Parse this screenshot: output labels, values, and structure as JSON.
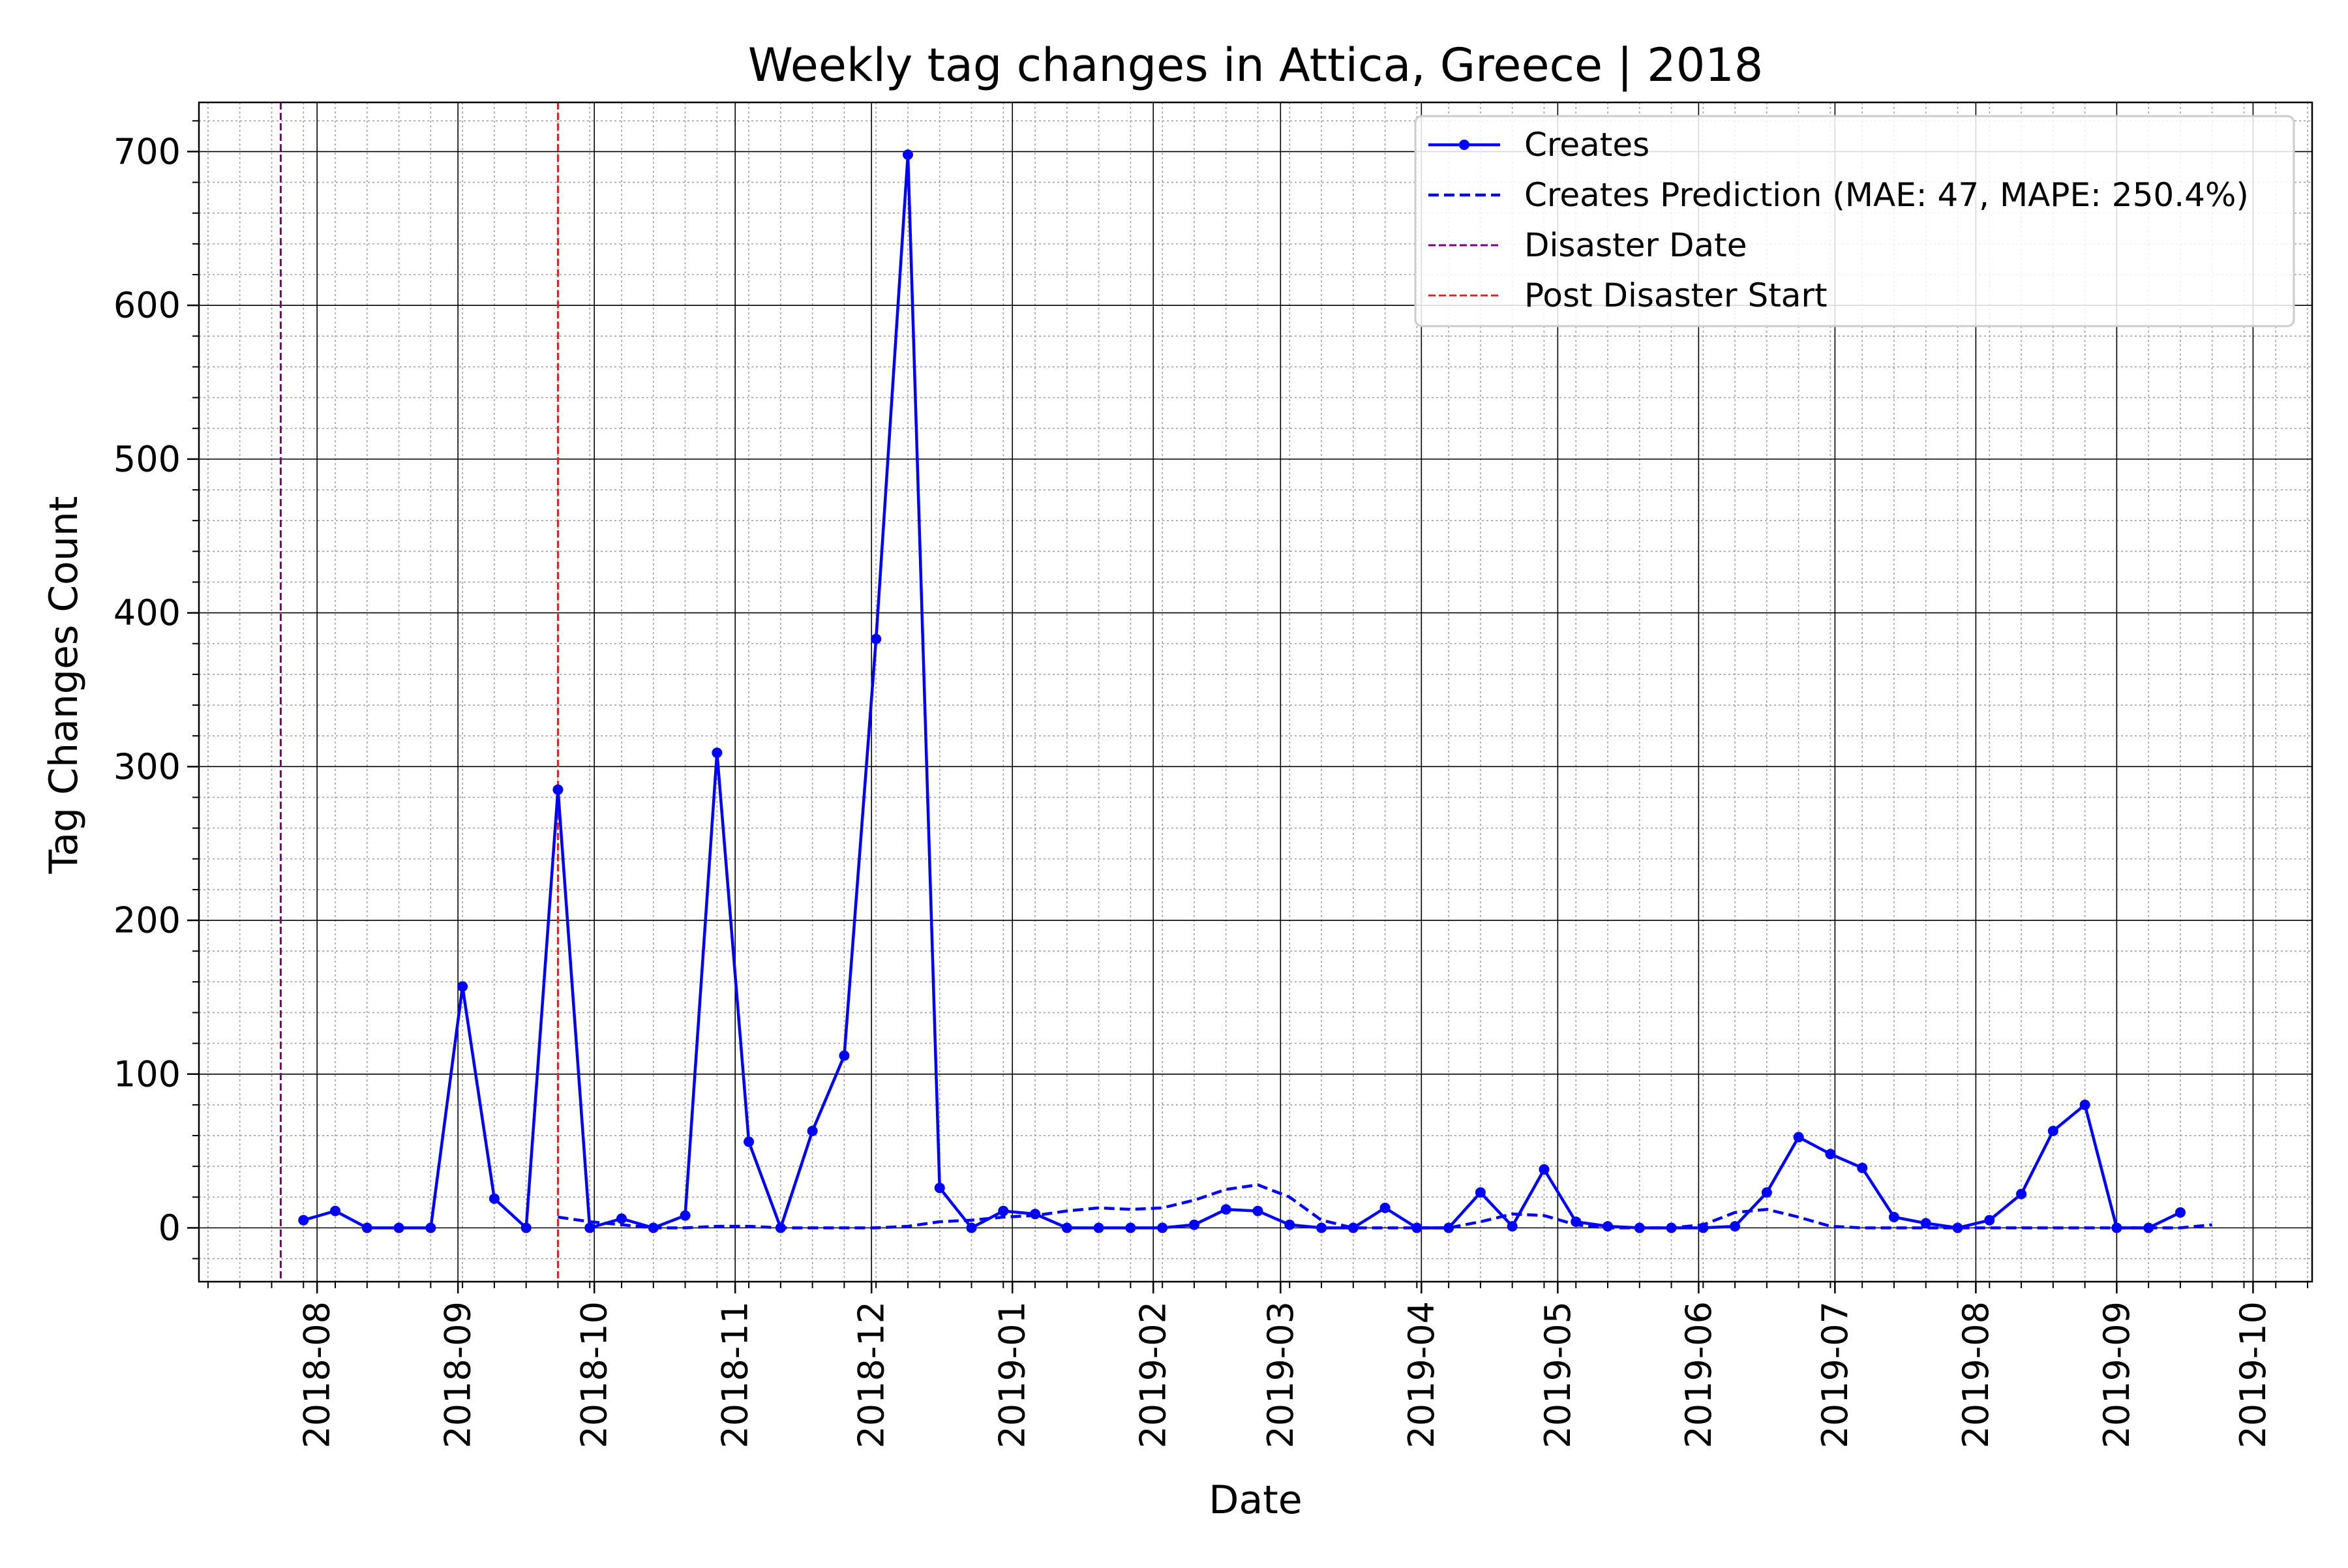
{
  "chart_data": {
    "type": "line",
    "title": "Weekly tag changes in Attica, Greece | 2018",
    "xlabel": "Date",
    "ylabel": "Tag Changes Count",
    "x_range": [
      "2018-07-06",
      "2019-10-14"
    ],
    "ylim": [
      -35,
      732
    ],
    "grid": true,
    "minor_grid": true,
    "legend_position": "top-right",
    "x_tick_labels": [
      "2018-08",
      "2018-09",
      "2018-10",
      "2018-11",
      "2018-12",
      "2019-01",
      "2019-02",
      "2019-03",
      "2019-04",
      "2019-05",
      "2019-06",
      "2019-07",
      "2019-08",
      "2019-09",
      "2019-10"
    ],
    "y_ticks": [
      0,
      100,
      200,
      300,
      400,
      500,
      600,
      700
    ],
    "series": [
      {
        "name": "Creates",
        "style": "solid-marker",
        "color": "#0000ff",
        "points": [
          [
            "2018-07-29",
            5
          ],
          [
            "2018-08-05",
            11
          ],
          [
            "2018-08-12",
            0
          ],
          [
            "2018-08-19",
            0
          ],
          [
            "2018-08-26",
            0
          ],
          [
            "2018-09-02",
            157
          ],
          [
            "2018-09-09",
            19
          ],
          [
            "2018-09-16",
            0
          ],
          [
            "2018-09-23",
            285
          ],
          [
            "2018-09-30",
            0
          ],
          [
            "2018-10-07",
            6
          ],
          [
            "2018-10-14",
            0
          ],
          [
            "2018-10-21",
            8
          ],
          [
            "2018-10-28",
            309
          ],
          [
            "2018-11-04",
            56
          ],
          [
            "2018-11-11",
            0
          ],
          [
            "2018-11-18",
            63
          ],
          [
            "2018-11-25",
            112
          ],
          [
            "2018-12-02",
            383
          ],
          [
            "2018-12-09",
            698
          ],
          [
            "2018-12-16",
            26
          ],
          [
            "2018-12-23",
            0
          ],
          [
            "2018-12-30",
            11
          ],
          [
            "2019-01-06",
            9
          ],
          [
            "2019-01-13",
            0
          ],
          [
            "2019-01-20",
            0
          ],
          [
            "2019-01-27",
            0
          ],
          [
            "2019-02-03",
            0
          ],
          [
            "2019-02-10",
            2
          ],
          [
            "2019-02-17",
            12
          ],
          [
            "2019-02-24",
            11
          ],
          [
            "2019-03-03",
            2
          ],
          [
            "2019-03-10",
            0
          ],
          [
            "2019-03-17",
            0
          ],
          [
            "2019-03-24",
            13
          ],
          [
            "2019-03-31",
            0
          ],
          [
            "2019-04-07",
            0
          ],
          [
            "2019-04-14",
            23
          ],
          [
            "2019-04-21",
            1
          ],
          [
            "2019-04-28",
            38
          ],
          [
            "2019-05-05",
            4
          ],
          [
            "2019-05-12",
            1
          ],
          [
            "2019-05-19",
            0
          ],
          [
            "2019-05-26",
            0
          ],
          [
            "2019-06-02",
            0
          ],
          [
            "2019-06-09",
            1
          ],
          [
            "2019-06-16",
            23
          ],
          [
            "2019-06-23",
            59
          ],
          [
            "2019-06-30",
            48
          ],
          [
            "2019-07-07",
            39
          ],
          [
            "2019-07-14",
            7
          ],
          [
            "2019-07-21",
            3
          ],
          [
            "2019-07-28",
            0
          ],
          [
            "2019-08-04",
            5
          ],
          [
            "2019-08-11",
            22
          ],
          [
            "2019-08-18",
            63
          ],
          [
            "2019-08-25",
            80
          ],
          [
            "2019-09-01",
            0
          ],
          [
            "2019-09-08",
            0
          ],
          [
            "2019-09-15",
            10
          ]
        ]
      },
      {
        "name": "Creates Prediction (MAE: 47, MAPE: 250.4%)",
        "style": "dashed",
        "color": "#0000ff",
        "points": [
          [
            "2018-09-23",
            7
          ],
          [
            "2018-09-30",
            4
          ],
          [
            "2018-10-07",
            2
          ],
          [
            "2018-10-14",
            0
          ],
          [
            "2018-10-21",
            0
          ],
          [
            "2018-10-28",
            1
          ],
          [
            "2018-11-04",
            1
          ],
          [
            "2018-11-11",
            0
          ],
          [
            "2018-11-18",
            0
          ],
          [
            "2018-11-25",
            0
          ],
          [
            "2018-12-02",
            0
          ],
          [
            "2018-12-09",
            1
          ],
          [
            "2018-12-16",
            4
          ],
          [
            "2018-12-23",
            5
          ],
          [
            "2018-12-30",
            7
          ],
          [
            "2019-01-06",
            8
          ],
          [
            "2019-01-13",
            11
          ],
          [
            "2019-01-20",
            13
          ],
          [
            "2019-01-27",
            12
          ],
          [
            "2019-02-03",
            13
          ],
          [
            "2019-02-10",
            18
          ],
          [
            "2019-02-17",
            25
          ],
          [
            "2019-02-24",
            28
          ],
          [
            "2019-03-03",
            20
          ],
          [
            "2019-03-10",
            5
          ],
          [
            "2019-03-17",
            0
          ],
          [
            "2019-03-24",
            0
          ],
          [
            "2019-03-31",
            0
          ],
          [
            "2019-04-07",
            0
          ],
          [
            "2019-04-14",
            4
          ],
          [
            "2019-04-21",
            9
          ],
          [
            "2019-04-28",
            8
          ],
          [
            "2019-05-05",
            2
          ],
          [
            "2019-05-12",
            0
          ],
          [
            "2019-05-19",
            0
          ],
          [
            "2019-05-26",
            0
          ],
          [
            "2019-06-02",
            2
          ],
          [
            "2019-06-09",
            10
          ],
          [
            "2019-06-16",
            12
          ],
          [
            "2019-06-23",
            7
          ],
          [
            "2019-06-30",
            1
          ],
          [
            "2019-07-07",
            0
          ],
          [
            "2019-07-14",
            0
          ],
          [
            "2019-07-21",
            0
          ],
          [
            "2019-07-28",
            0
          ],
          [
            "2019-08-04",
            0
          ],
          [
            "2019-08-11",
            0
          ],
          [
            "2019-08-18",
            0
          ],
          [
            "2019-08-25",
            0
          ],
          [
            "2019-09-01",
            0
          ],
          [
            "2019-09-08",
            0
          ],
          [
            "2019-09-15",
            0
          ],
          [
            "2019-09-22",
            2
          ]
        ]
      },
      {
        "name": "Disaster Date",
        "style": "vline-dashed",
        "color": "#800080",
        "x": "2018-07-24"
      },
      {
        "name": "Post Disaster Start",
        "style": "vline-dashed",
        "color": "#d62728",
        "x": "2018-09-23"
      }
    ]
  }
}
